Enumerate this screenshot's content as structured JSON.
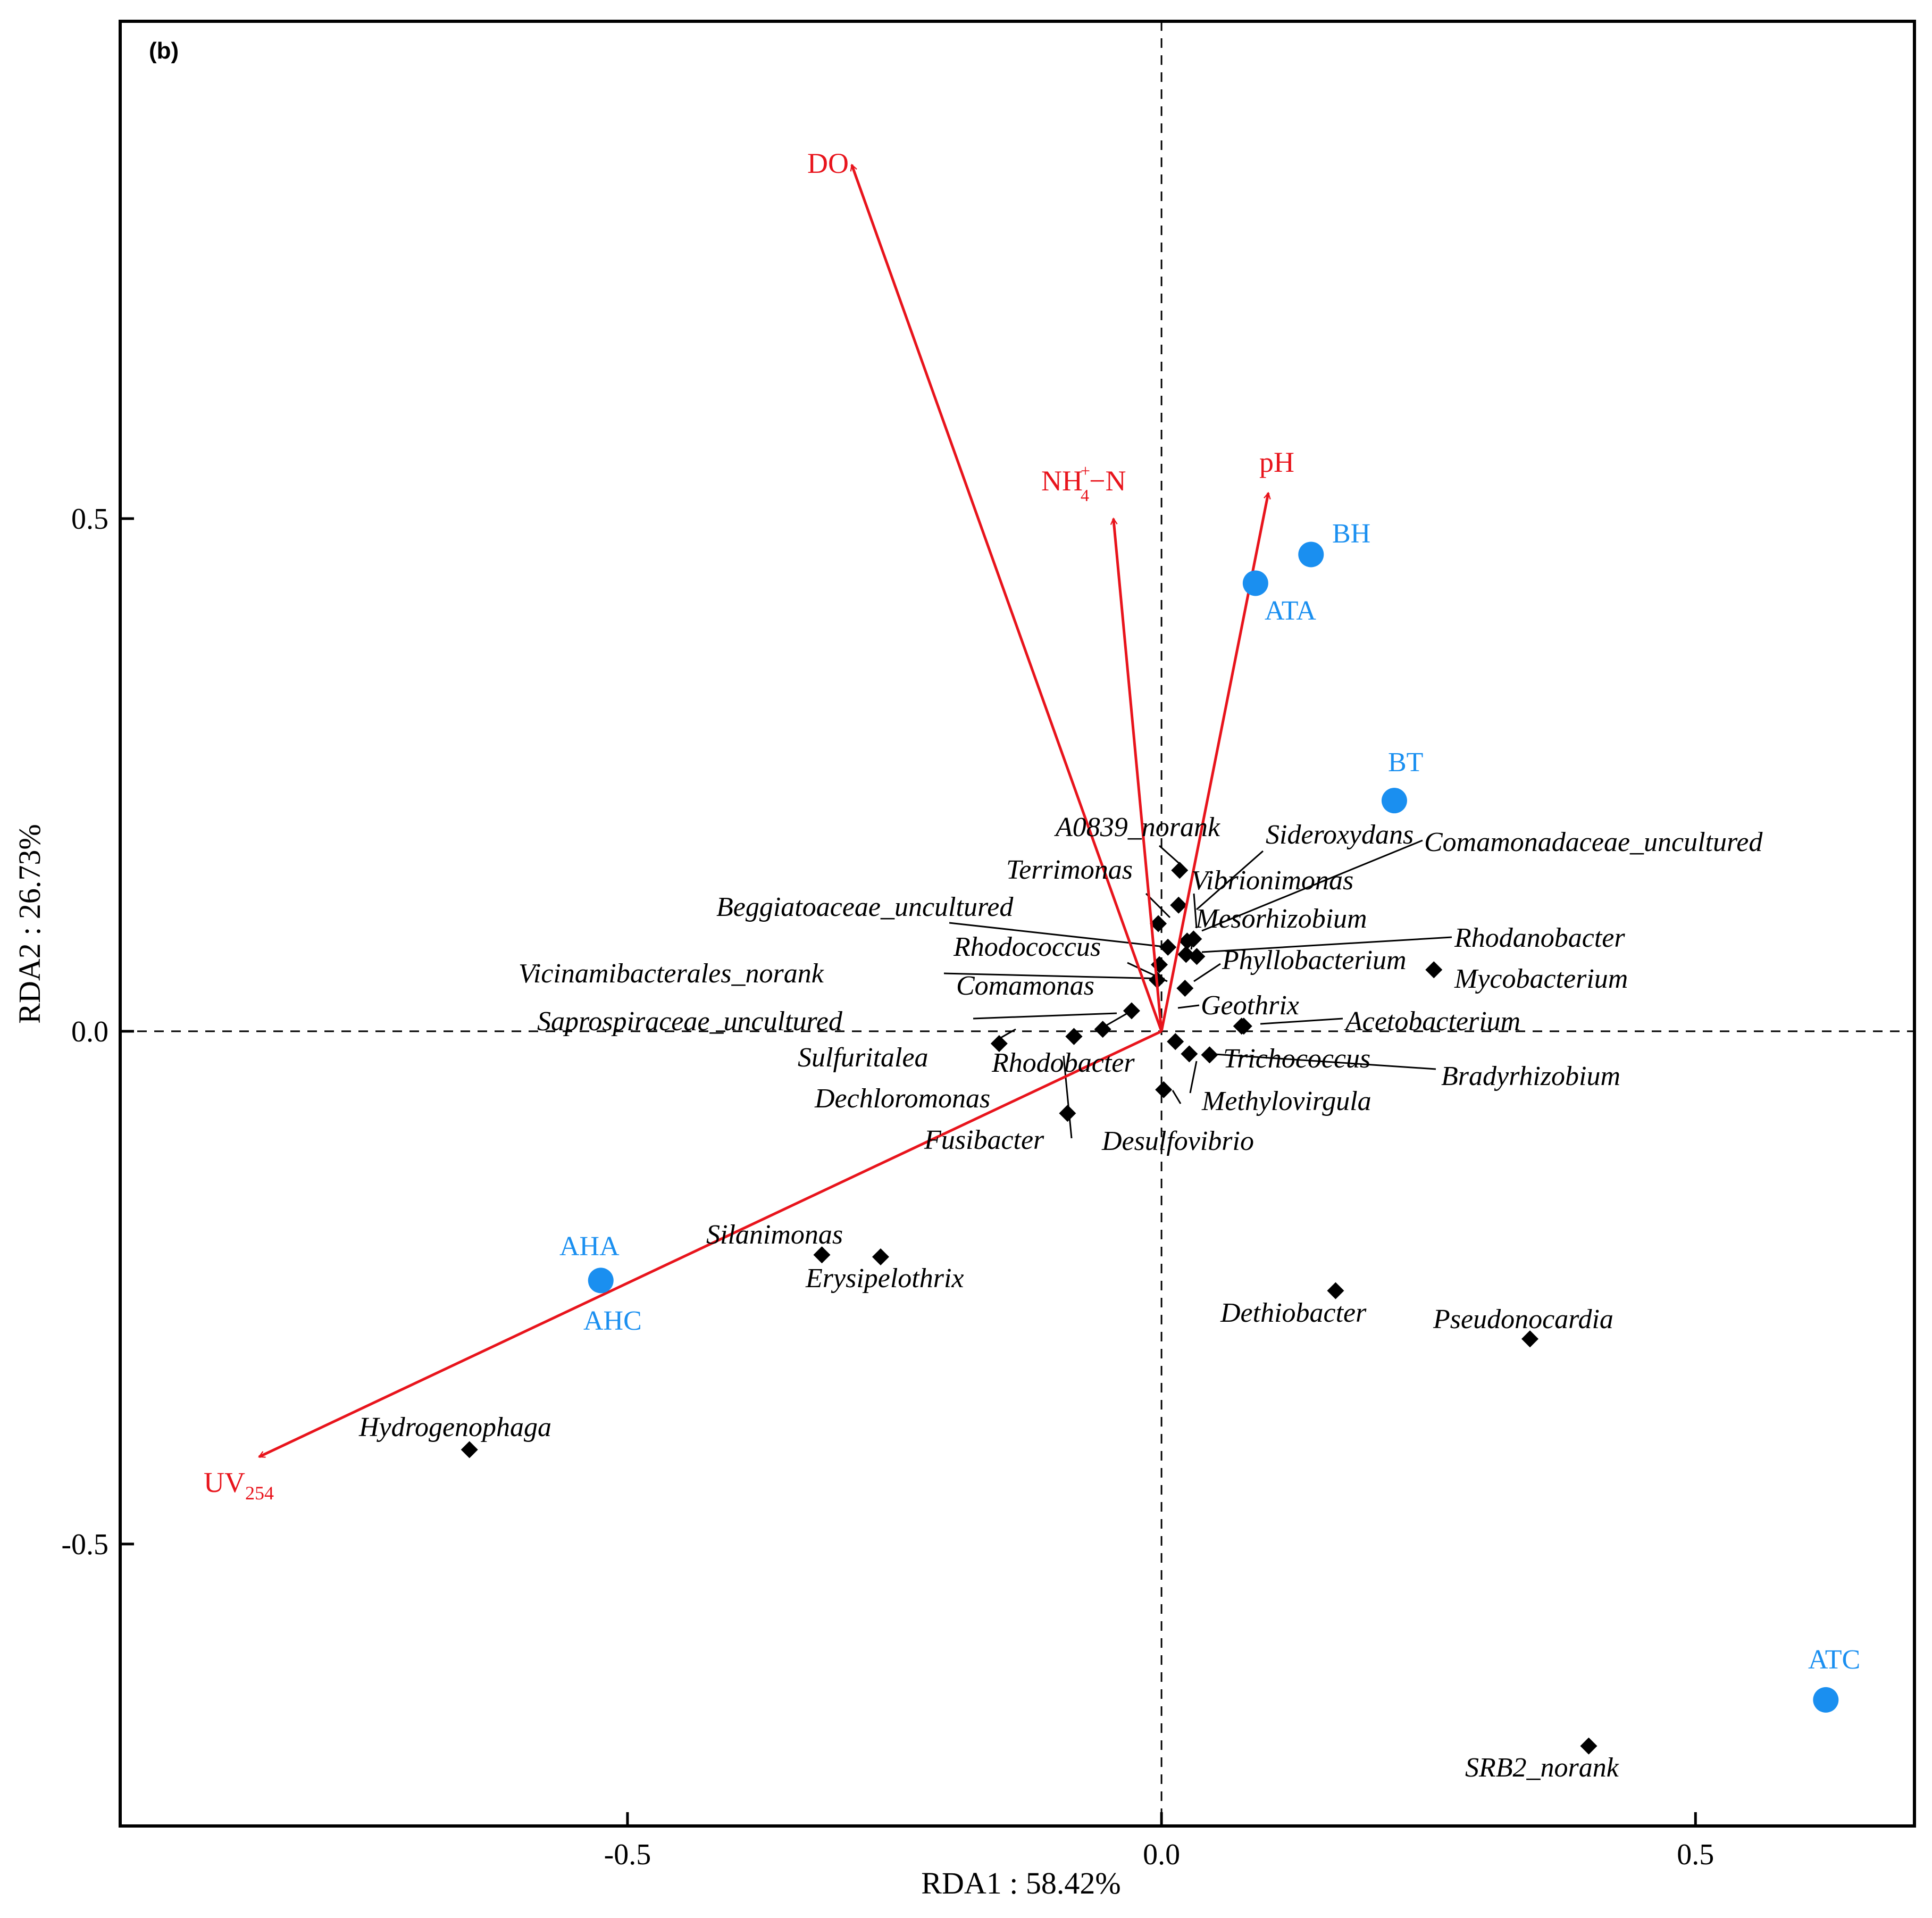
{
  "panel_label": "(b)",
  "colors": {
    "arrow": "#e8141c",
    "sample": "#1a8ff0",
    "species": "#000000",
    "axis": "#000000"
  },
  "chart_data": {
    "type": "scatter",
    "title": "",
    "xlabel": "RDA1 : 58.42%",
    "ylabel": "RDA2 : 26.73%",
    "xlim": [
      -0.975,
      0.705
    ],
    "ylim": [
      -0.775,
      0.985
    ],
    "xticks": [
      -0.5,
      0.0,
      0.5
    ],
    "xtick_labels": [
      "-0.5",
      "0.0",
      "0.5"
    ],
    "yticks": [
      0.5,
      0.0,
      -0.5
    ],
    "ytick_labels": [
      "0.5",
      "0.0",
      "-0.5"
    ],
    "env_vectors": [
      {
        "name": "DO",
        "x": -0.29,
        "y": 0.845
      },
      {
        "name": "NH4+-N",
        "label_main": "NH",
        "label_sup": "+",
        "label_sub": "4",
        "label_tail": "−N",
        "x": -0.045,
        "y": 0.5
      },
      {
        "name": "pH",
        "x": 0.1,
        "y": 0.525
      },
      {
        "name": "UV254",
        "label_main": "UV",
        "label_sub": "254",
        "x": -0.845,
        "y": -0.415
      }
    ],
    "samples": [
      {
        "name": "BH",
        "x": 0.14,
        "y": 0.465
      },
      {
        "name": "ATA",
        "x": 0.088,
        "y": 0.437
      },
      {
        "name": "BT",
        "x": 0.218,
        "y": 0.225
      },
      {
        "name": "AHA",
        "x": -0.525,
        "y": -0.243
      },
      {
        "name": "AHC",
        "x": -0.525,
        "y": -0.243
      },
      {
        "name": "ATC",
        "x": 0.622,
        "y": -0.652
      }
    ],
    "species": [
      {
        "name": "A0839_norank",
        "x": 0.017,
        "y": 0.157
      },
      {
        "name": "Sideroxydans",
        "x": 0.03,
        "y": 0.09
      },
      {
        "name": "Comamonadaceae_uncultured",
        "x": 0.033,
        "y": 0.073
      },
      {
        "name": "Terrimonas",
        "x": -0.003,
        "y": 0.105
      },
      {
        "name": "Vibrionimonas",
        "x": 0.016,
        "y": 0.123
      },
      {
        "name": "Beggiatoaceae_uncultured",
        "x": 0.006,
        "y": 0.082
      },
      {
        "name": "Mesorhizobium",
        "x": 0.024,
        "y": 0.088
      },
      {
        "name": "Rhodococcus",
        "x": -0.002,
        "y": 0.065
      },
      {
        "name": "Rhodanobacter",
        "x": 0.023,
        "y": 0.075
      },
      {
        "name": "Vicinamibacterales_norank",
        "x": -0.004,
        "y": 0.05
      },
      {
        "name": "Phyllobacterium",
        "x": 0.022,
        "y": 0.042
      },
      {
        "name": "Comamonas",
        "x": -0.028,
        "y": 0.02
      },
      {
        "name": "Mycobacterium",
        "x": 0.255,
        "y": 0.06
      },
      {
        "name": "Geothrix",
        "x": 0.075,
        "y": 0.005
      },
      {
        "name": "Saprospiraceae_uncultured",
        "x": -0.055,
        "y": 0.002
      },
      {
        "name": "Acetobacterium",
        "x": 0.077,
        "y": 0.005
      },
      {
        "name": "Sulfuritalea",
        "x": -0.152,
        "y": -0.012
      },
      {
        "name": "Rhodobacter",
        "x": -0.082,
        "y": -0.005
      },
      {
        "name": "Trichococcus",
        "x": 0.013,
        "y": -0.01
      },
      {
        "name": "Bradyrhizobium",
        "x": 0.045,
        "y": -0.023
      },
      {
        "name": "Dechloromonas",
        "x": -0.082,
        "y": -0.005
      },
      {
        "name": "Methylovirgula",
        "x": 0.026,
        "y": -0.022
      },
      {
        "name": "Fusibacter",
        "x": -0.088,
        "y": -0.08
      },
      {
        "name": "Desulfovibrio",
        "x": 0.002,
        "y": -0.057
      },
      {
        "name": "Silanimonas",
        "x": -0.318,
        "y": -0.218
      },
      {
        "name": "Erysipelothrix",
        "x": -0.263,
        "y": -0.22
      },
      {
        "name": "Dethiobacter",
        "x": 0.163,
        "y": -0.253
      },
      {
        "name": "Pseudonocardia",
        "x": 0.345,
        "y": -0.3
      },
      {
        "name": "Hydrogenophaga",
        "x": -0.648,
        "y": -0.408
      },
      {
        "name": "SRB2_norank",
        "x": 0.4,
        "y": -0.697
      }
    ]
  }
}
